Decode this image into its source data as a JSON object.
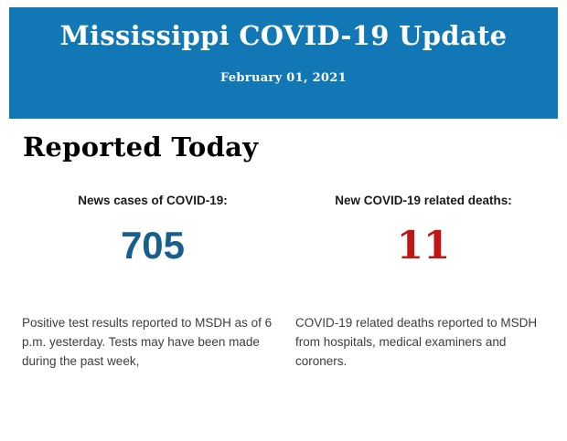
{
  "banner": {
    "title": "Mississippi COVID-19 Update",
    "date": "February 01, 2021",
    "bg_color": "#1278b5",
    "text_color": "#ffffff"
  },
  "section": {
    "heading": "Reported Today"
  },
  "stats": [
    {
      "label": "News cases of COVID-19:",
      "value": "705",
      "value_color": "#175f8c",
      "description": "Positive test results reported to MSDH as of 6 p.m. yesterday. Tests may have been made during the past week,"
    },
    {
      "label": "New COVID-19 related deaths:",
      "value": "11",
      "value_color": "#bf1616",
      "description": "COVID-19 related deaths reported to MSDH from hospitals, medical examiners and coroners."
    }
  ]
}
